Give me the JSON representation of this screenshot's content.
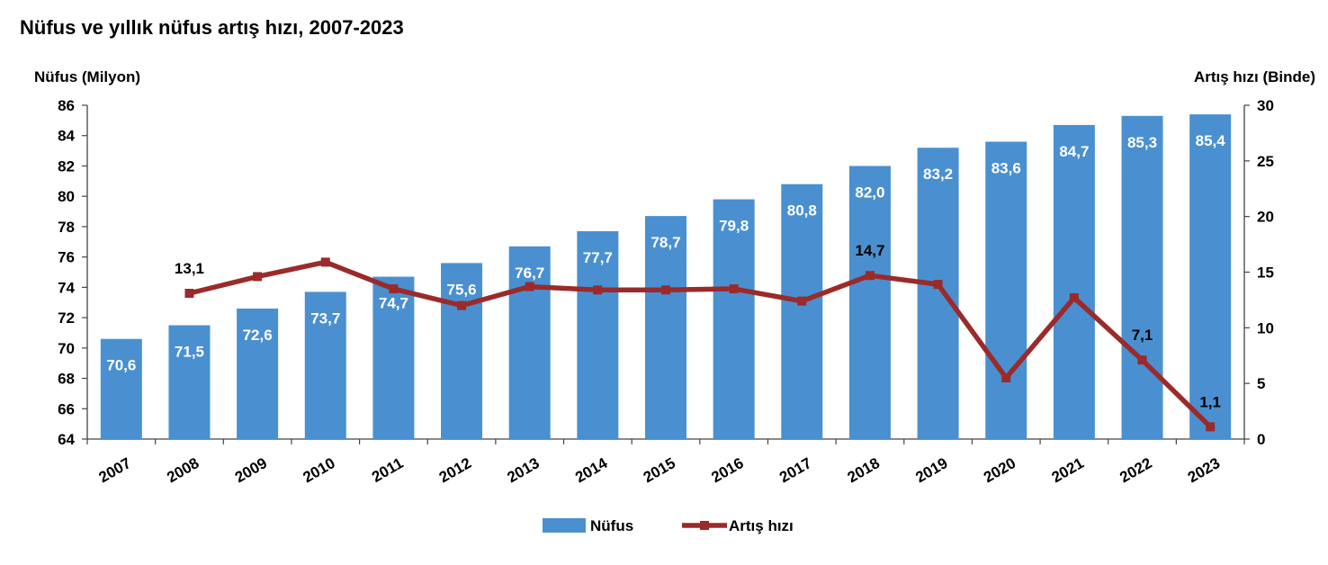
{
  "title": "Nüfus ve yıllık nüfus artış hızı, 2007-2023",
  "colors": {
    "bar": "#4a90d0",
    "line": "#9b2a2a",
    "axis": "#444444"
  },
  "chart_data": {
    "type": "bar",
    "title": "Nüfus ve yıllık nüfus artış hızı, 2007-2023",
    "categories": [
      "2007",
      "2008",
      "2009",
      "2010",
      "2011",
      "2012",
      "2013",
      "2014",
      "2015",
      "2016",
      "2017",
      "2018",
      "2019",
      "2020",
      "2021",
      "2022",
      "2023"
    ],
    "left_axis": {
      "label": "Nüfus (Milyon)",
      "ylim": [
        64,
        86
      ],
      "ticks": [
        "64",
        "66",
        "68",
        "70",
        "72",
        "74",
        "76",
        "78",
        "80",
        "82",
        "84",
        "86"
      ]
    },
    "right_axis": {
      "label": "Artış hızı (Binde)",
      "ylim": [
        0,
        30
      ],
      "ticks": [
        "0",
        "5",
        "10",
        "15",
        "20",
        "25",
        "30"
      ]
    },
    "series": [
      {
        "name": "Nüfus",
        "type": "bar",
        "axis": "left",
        "values": [
          70.6,
          71.5,
          72.6,
          73.7,
          74.7,
          75.6,
          76.7,
          77.7,
          78.7,
          79.8,
          80.8,
          82.0,
          83.2,
          83.6,
          84.7,
          85.3,
          85.4
        ],
        "labels": [
          "70,6",
          "71,5",
          "72,6",
          "73,7",
          "74,7",
          "75,6",
          "76,7",
          "77,7",
          "78,7",
          "79,8",
          "80,8",
          "82,0",
          "83,2",
          "83,6",
          "84,7",
          "85,3",
          "85,4"
        ]
      },
      {
        "name": "Artış hızı",
        "type": "line",
        "axis": "right",
        "values": [
          null,
          13.1,
          14.6,
          15.9,
          13.5,
          12.0,
          13.7,
          13.4,
          13.4,
          13.5,
          12.4,
          14.7,
          13.9,
          5.5,
          12.7,
          7.1,
          1.1
        ],
        "labels": [
          "",
          "13,1",
          "",
          "",
          "",
          "",
          "",
          "",
          "",
          "",
          "",
          "14,7",
          "",
          "",
          "",
          "7,1",
          "1,1"
        ]
      }
    ],
    "legend": {
      "position": "bottom",
      "items": [
        "Nüfus",
        "Artış hızı"
      ]
    },
    "grid": false
  }
}
